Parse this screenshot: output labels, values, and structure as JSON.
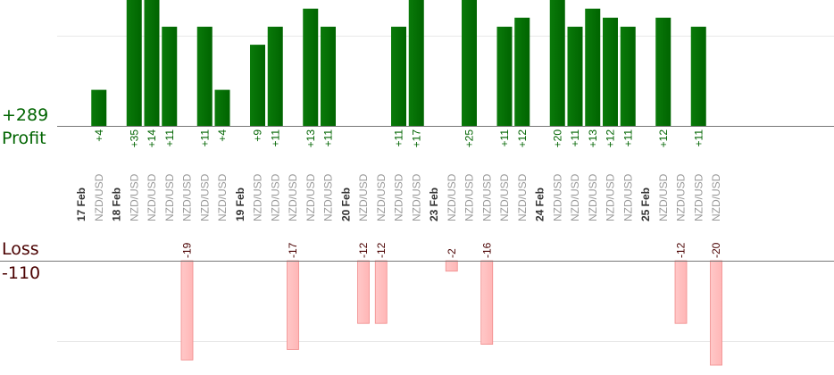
{
  "summary": {
    "profit_total": "+289",
    "profit_label": "Profit",
    "loss_label": "Loss",
    "loss_total": "-110"
  },
  "colors": {
    "profit_bar": "#006400",
    "profit_text": "#006400",
    "loss_bar": "#ffb6b6",
    "loss_text": "#4a0000",
    "axis": "#777777",
    "grid": "#e8e8e8",
    "date_label": "#333333",
    "pair_label": "#999999"
  },
  "chart_data": {
    "type": "bar",
    "gridlines": true,
    "columns": [
      {
        "kind": "date",
        "label": "17 Feb"
      },
      {
        "kind": "trade",
        "label": "NZD/USD",
        "value": 4,
        "value_label": "+4"
      },
      {
        "kind": "date",
        "label": "18 Feb"
      },
      {
        "kind": "trade",
        "label": "NZD/USD",
        "value": 35,
        "value_label": "+35"
      },
      {
        "kind": "trade",
        "label": "NZD/USD",
        "value": 14,
        "value_label": "+14"
      },
      {
        "kind": "trade",
        "label": "NZD/USD",
        "value": 11,
        "value_label": "+11"
      },
      {
        "kind": "trade",
        "label": "NZD/USD",
        "value": -19,
        "value_label": "-19"
      },
      {
        "kind": "trade",
        "label": "NZD/USD",
        "value": 11,
        "value_label": "+11"
      },
      {
        "kind": "trade",
        "label": "NZD/USD",
        "value": 4,
        "value_label": "+4"
      },
      {
        "kind": "date",
        "label": "19 Feb"
      },
      {
        "kind": "trade",
        "label": "NZD/USD",
        "value": 9,
        "value_label": "+9"
      },
      {
        "kind": "trade",
        "label": "NZD/USD",
        "value": 11,
        "value_label": "+11"
      },
      {
        "kind": "trade",
        "label": "NZD/USD",
        "value": -17,
        "value_label": "-17"
      },
      {
        "kind": "trade",
        "label": "NZD/USD",
        "value": 13,
        "value_label": "+13"
      },
      {
        "kind": "trade",
        "label": "NZD/USD",
        "value": 11,
        "value_label": "+11"
      },
      {
        "kind": "date",
        "label": "20 Feb"
      },
      {
        "kind": "trade",
        "label": "NZD/USD",
        "value": -12,
        "value_label": "-12"
      },
      {
        "kind": "trade",
        "label": "NZD/USD",
        "value": -12,
        "value_label": "-12"
      },
      {
        "kind": "trade",
        "label": "NZD/USD",
        "value": 11,
        "value_label": "+11"
      },
      {
        "kind": "trade",
        "label": "NZD/USD",
        "value": 17,
        "value_label": "+17"
      },
      {
        "kind": "date",
        "label": "23 Feb"
      },
      {
        "kind": "trade",
        "label": "NZD/USD",
        "value": -2,
        "value_label": "-2"
      },
      {
        "kind": "trade",
        "label": "NZD/USD",
        "value": 25,
        "value_label": "+25"
      },
      {
        "kind": "trade",
        "label": "NZD/USD",
        "value": -16,
        "value_label": "-16"
      },
      {
        "kind": "trade",
        "label": "NZD/USD",
        "value": 11,
        "value_label": "+11"
      },
      {
        "kind": "trade",
        "label": "NZD/USD",
        "value": 12,
        "value_label": "+12"
      },
      {
        "kind": "date",
        "label": "24 Feb"
      },
      {
        "kind": "trade",
        "label": "NZD/USD",
        "value": 20,
        "value_label": "+20"
      },
      {
        "kind": "trade",
        "label": "NZD/USD",
        "value": 11,
        "value_label": "+11"
      },
      {
        "kind": "trade",
        "label": "NZD/USD",
        "value": 13,
        "value_label": "+13"
      },
      {
        "kind": "trade",
        "label": "NZD/USD",
        "value": 12,
        "value_label": "+12"
      },
      {
        "kind": "trade",
        "label": "NZD/USD",
        "value": 11,
        "value_label": "+11"
      },
      {
        "kind": "date",
        "label": "25 Feb"
      },
      {
        "kind": "trade",
        "label": "NZD/USD",
        "value": 12,
        "value_label": "+12"
      },
      {
        "kind": "trade",
        "label": "NZD/USD",
        "value": -12,
        "value_label": "-12"
      },
      {
        "kind": "trade",
        "label": "NZD/USD",
        "value": 11,
        "value_label": "+11"
      },
      {
        "kind": "trade",
        "label": "NZD/USD",
        "value": -20,
        "value_label": "-20"
      }
    ]
  }
}
